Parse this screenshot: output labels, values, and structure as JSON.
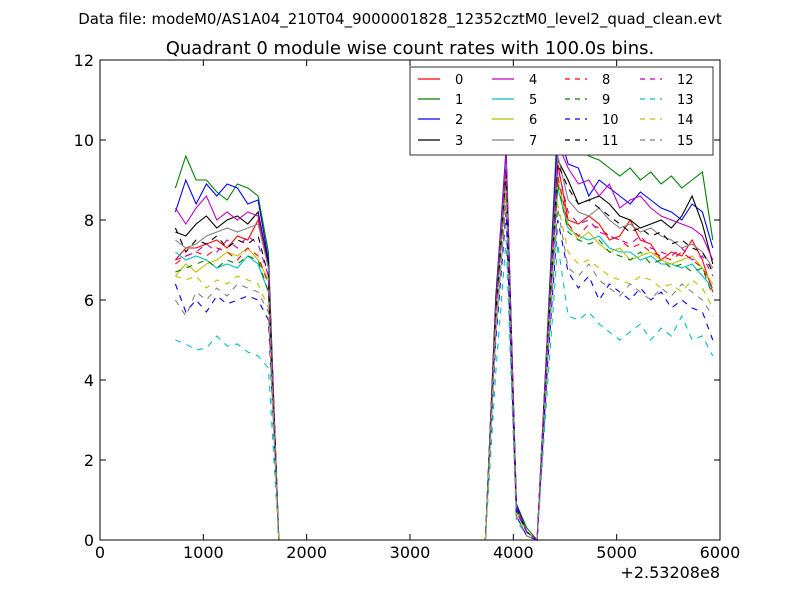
{
  "figure": {
    "suptitle": "Data file: modeM0/AS1A04_210T04_9000001828_12352cztM0_level2_quad_clean.evt"
  },
  "chart_data": {
    "type": "line",
    "title": "Quadrant 0 module wise count rates with 100.0s bins.",
    "xlabel": "",
    "ylabel": "",
    "x_offset_label": "+2.53208e8",
    "xlim": [
      0,
      6000
    ],
    "ylim": [
      0,
      12
    ],
    "xticks": [
      0,
      1000,
      2000,
      3000,
      4000,
      5000,
      6000
    ],
    "xtick_labels": [
      "0",
      "1000",
      "2000",
      "3000",
      "4000",
      "5000",
      "6000"
    ],
    "yticks": [
      0,
      2,
      4,
      6,
      8,
      10,
      12
    ],
    "ytick_labels": [
      "0",
      "2",
      "4",
      "6",
      "8",
      "10",
      "12"
    ],
    "grid": false,
    "legend": {
      "position": "top-right",
      "columns": 4
    },
    "x": [
      730,
      830,
      930,
      1030,
      1130,
      1230,
      1330,
      1430,
      1530,
      1630,
      1730,
      1830,
      3730,
      3830,
      3930,
      4030,
      4130,
      4230,
      4330,
      4430,
      4530,
      4630,
      4730,
      4830,
      4930,
      5030,
      5130,
      5230,
      5330,
      5430,
      5530,
      5630,
      5730,
      5830,
      5930
    ],
    "series": [
      {
        "name": "0",
        "color": "#ff0000",
        "dash": "solid",
        "values": [
          7.0,
          7.3,
          7.3,
          7.4,
          7.5,
          7.3,
          7.6,
          7.5,
          8.0,
          7.0,
          0,
          0,
          0,
          5.8,
          9.6,
          0.8,
          0.2,
          0,
          5.0,
          9.4,
          8.0,
          7.9,
          8.1,
          7.9,
          7.5,
          7.6,
          8.0,
          7.5,
          7.4,
          7.0,
          7.2,
          7.1,
          7.5,
          7.0,
          6.2
        ]
      },
      {
        "name": "1",
        "color": "#008000",
        "dash": "solid",
        "values": [
          8.8,
          9.6,
          9.0,
          9.0,
          8.7,
          8.5,
          8.9,
          8.8,
          8.6,
          7.2,
          0,
          0,
          0,
          6.1,
          9.6,
          0.9,
          0.3,
          0,
          5.2,
          10.6,
          10.0,
          9.8,
          9.6,
          9.5,
          9.3,
          9.1,
          9.3,
          9.0,
          9.2,
          8.9,
          9.1,
          8.8,
          9.0,
          9.2,
          7.5
        ]
      },
      {
        "name": "2",
        "color": "#0000ff",
        "dash": "solid",
        "values": [
          8.2,
          9.0,
          8.4,
          8.9,
          8.6,
          8.9,
          8.8,
          8.4,
          8.5,
          7.0,
          0,
          0,
          0,
          6.0,
          9.8,
          0.9,
          0.2,
          0,
          5.1,
          10.3,
          9.4,
          9.3,
          8.6,
          9.0,
          8.8,
          8.6,
          8.4,
          8.7,
          8.5,
          8.3,
          8.2,
          8.0,
          8.4,
          8.2,
          7.3
        ]
      },
      {
        "name": "3",
        "color": "#000000",
        "dash": "solid",
        "values": [
          7.7,
          7.6,
          7.9,
          8.1,
          7.8,
          8.0,
          8.1,
          7.9,
          8.2,
          6.9,
          0,
          0,
          0,
          5.9,
          9.5,
          0.8,
          0.2,
          0,
          5.0,
          9.5,
          9.0,
          8.4,
          8.5,
          8.6,
          8.4,
          8.1,
          8.0,
          7.8,
          7.9,
          8.0,
          7.8,
          8.1,
          8.6,
          7.9,
          6.9
        ]
      },
      {
        "name": "4",
        "color": "#bf00bf",
        "dash": "solid",
        "values": [
          8.3,
          7.9,
          8.3,
          8.6,
          8.0,
          8.2,
          8.0,
          8.2,
          8.1,
          6.8,
          0,
          0,
          0,
          5.8,
          9.7,
          0.8,
          0.2,
          0,
          5.0,
          9.9,
          9.3,
          8.9,
          9.0,
          8.6,
          8.9,
          8.3,
          8.5,
          8.6,
          8.3,
          8.1,
          8.0,
          7.9,
          7.8,
          7.6,
          7.0
        ]
      },
      {
        "name": "5",
        "color": "#00bfbf",
        "dash": "solid",
        "values": [
          7.2,
          7.0,
          7.1,
          7.0,
          6.8,
          6.9,
          6.8,
          7.1,
          6.9,
          6.2,
          0,
          0,
          0,
          5.6,
          9.0,
          0.7,
          0.2,
          0,
          4.8,
          8.8,
          7.8,
          7.6,
          7.5,
          7.6,
          7.3,
          7.2,
          7.2,
          7.0,
          7.1,
          6.9,
          6.9,
          6.8,
          6.9,
          6.6,
          6.3
        ]
      },
      {
        "name": "6",
        "color": "#bfbf00",
        "dash": "solid",
        "values": [
          6.6,
          6.9,
          6.7,
          6.9,
          7.0,
          7.2,
          7.1,
          7.3,
          7.0,
          6.5,
          0,
          0,
          0,
          5.7,
          9.1,
          0.7,
          0.2,
          0,
          4.9,
          9.0,
          7.9,
          7.5,
          7.7,
          7.4,
          7.2,
          7.3,
          7.0,
          7.1,
          7.2,
          7.0,
          6.9,
          7.0,
          7.1,
          6.8,
          6.4
        ]
      },
      {
        "name": "7",
        "color": "#808080",
        "dash": "solid",
        "values": [
          7.5,
          7.3,
          7.4,
          7.6,
          7.7,
          7.8,
          7.7,
          7.8,
          7.9,
          6.8,
          0,
          0,
          0,
          5.8,
          9.4,
          0.8,
          0.2,
          0,
          5.0,
          9.6,
          8.5,
          8.2,
          8.1,
          8.3,
          8.0,
          7.8,
          7.9,
          7.7,
          7.8,
          7.6,
          7.5,
          7.3,
          7.4,
          7.2,
          6.8
        ]
      },
      {
        "name": "8",
        "color": "#ff0000",
        "dash": "dashed",
        "values": [
          6.9,
          7.1,
          7.2,
          7.1,
          7.3,
          7.2,
          7.0,
          7.3,
          7.1,
          6.4,
          0,
          0,
          0,
          5.6,
          9.2,
          0.7,
          0.2,
          0,
          4.9,
          9.1,
          7.9,
          7.6,
          7.9,
          7.8,
          7.6,
          7.5,
          7.3,
          7.4,
          7.2,
          7.1,
          7.0,
          7.2,
          7.0,
          6.8,
          6.3
        ]
      },
      {
        "name": "9",
        "color": "#008000",
        "dash": "dashed",
        "values": [
          6.7,
          6.8,
          6.9,
          7.0,
          6.8,
          7.0,
          6.9,
          7.1,
          7.0,
          6.2,
          0,
          0,
          0,
          5.5,
          9.0,
          0.7,
          0.2,
          0,
          4.8,
          8.9,
          7.7,
          7.5,
          7.4,
          7.5,
          7.2,
          7.1,
          7.0,
          7.2,
          6.9,
          7.0,
          6.8,
          6.9,
          6.7,
          6.8,
          6.1
        ]
      },
      {
        "name": "10",
        "color": "#0000ff",
        "dash": "dashed",
        "values": [
          6.4,
          5.7,
          6.0,
          5.7,
          6.1,
          5.9,
          6.0,
          6.1,
          6.0,
          5.5,
          0,
          0,
          0,
          5.0,
          8.2,
          0.6,
          0.1,
          0,
          4.3,
          8.0,
          6.7,
          6.3,
          6.6,
          6.0,
          6.4,
          6.2,
          6.0,
          6.3,
          6.0,
          6.2,
          5.8,
          6.0,
          5.8,
          5.7,
          5.0
        ]
      },
      {
        "name": "11",
        "color": "#000000",
        "dash": "dashed",
        "values": [
          7.8,
          7.2,
          7.5,
          7.4,
          7.6,
          7.3,
          7.5,
          7.4,
          7.6,
          6.6,
          0,
          0,
          0,
          5.7,
          9.3,
          0.8,
          0.2,
          0,
          4.9,
          9.4,
          8.8,
          8.4,
          8.5,
          8.3,
          8.1,
          7.9,
          7.7,
          7.8,
          7.6,
          7.7,
          7.4,
          7.5,
          7.3,
          7.2,
          6.7
        ]
      },
      {
        "name": "12",
        "color": "#bf00bf",
        "dash": "dashed",
        "values": [
          7.0,
          7.1,
          7.2,
          7.4,
          7.2,
          7.5,
          7.3,
          7.6,
          7.4,
          6.6,
          0,
          0,
          0,
          5.7,
          9.3,
          0.8,
          0.2,
          0,
          5.0,
          9.3,
          8.2,
          7.9,
          8.0,
          7.7,
          7.6,
          7.5,
          7.4,
          7.6,
          7.3,
          7.2,
          7.1,
          7.3,
          7.0,
          7.1,
          6.6
        ]
      },
      {
        "name": "13",
        "color": "#00bfbf",
        "dash": "dashed",
        "values": [
          5.0,
          4.9,
          4.75,
          4.8,
          5.1,
          4.85,
          4.9,
          4.7,
          4.6,
          4.3,
          0,
          0,
          0,
          4.2,
          7.5,
          0.5,
          0.1,
          0,
          3.8,
          7.4,
          5.6,
          5.5,
          5.7,
          5.4,
          5.2,
          5.0,
          5.2,
          5.4,
          5.0,
          5.3,
          5.1,
          5.6,
          5.0,
          5.1,
          4.6
        ]
      },
      {
        "name": "14",
        "color": "#bfbf00",
        "dash": "dashed",
        "values": [
          6.6,
          6.5,
          6.6,
          6.3,
          6.5,
          6.4,
          6.6,
          6.5,
          6.4,
          5.8,
          0,
          0,
          0,
          5.3,
          8.6,
          0.6,
          0.1,
          0,
          4.5,
          8.4,
          7.2,
          6.9,
          7.0,
          6.8,
          6.6,
          6.5,
          6.4,
          6.6,
          6.5,
          6.3,
          6.4,
          6.2,
          6.5,
          6.3,
          5.8
        ]
      },
      {
        "name": "15",
        "color": "#808080",
        "dash": "dashed",
        "values": [
          6.0,
          5.6,
          6.2,
          6.0,
          6.3,
          6.1,
          6.4,
          6.3,
          6.2,
          5.7,
          0,
          0,
          0,
          5.2,
          8.5,
          0.6,
          0.1,
          0,
          4.4,
          8.3,
          6.8,
          6.6,
          6.9,
          6.5,
          6.3,
          6.1,
          6.4,
          6.2,
          6.0,
          6.3,
          6.1,
          6.4,
          6.2,
          6.0,
          5.6
        ]
      }
    ]
  }
}
